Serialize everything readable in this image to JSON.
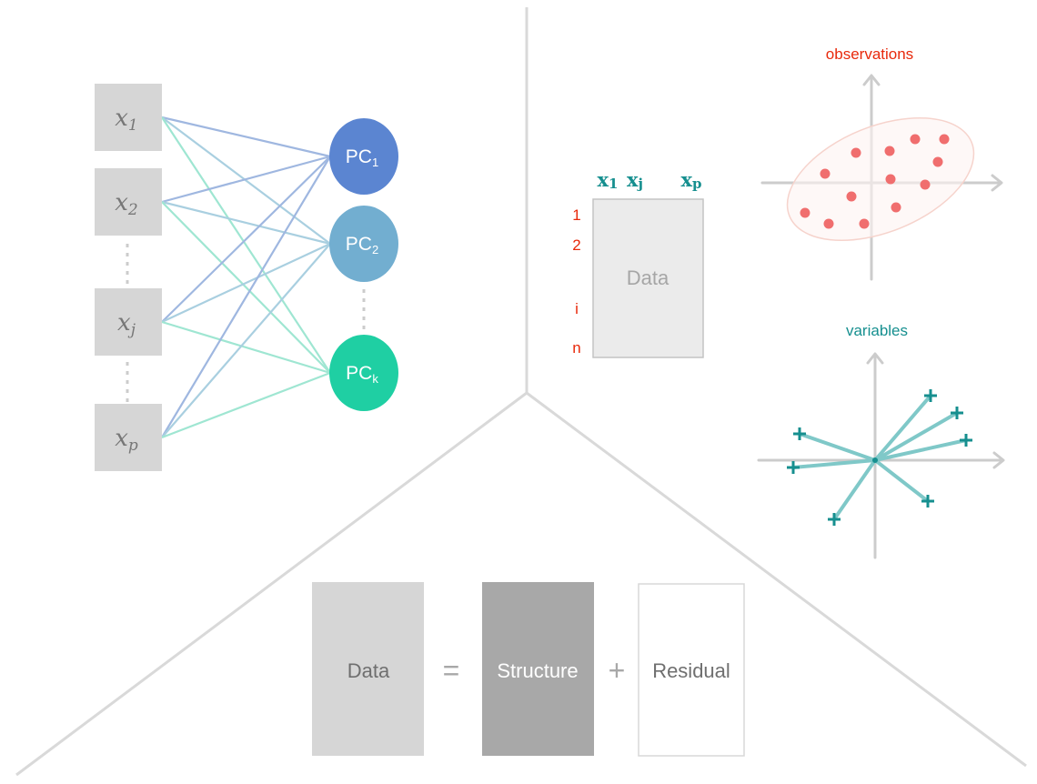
{
  "network": {
    "inputs": [
      {
        "base": "x",
        "sub": "1"
      },
      {
        "base": "x",
        "sub": "2"
      },
      {
        "base": "x",
        "sub": "j"
      },
      {
        "base": "x",
        "sub": "p"
      }
    ],
    "components": [
      {
        "base": "PC",
        "sub": "1",
        "color": "#5b85d1"
      },
      {
        "base": "PC",
        "sub": "2",
        "color": "#72aed0"
      },
      {
        "base": "PC",
        "sub": "k",
        "color": "#1fcfa3"
      }
    ],
    "edge_colors": [
      "#9fb7e0",
      "#a9cfe0",
      "#9fe6d2"
    ],
    "box_color": "#d6d6d6"
  },
  "matrix": {
    "columns": [
      {
        "base": "x",
        "sub": "1"
      },
      {
        "base": "x",
        "sub": "j"
      },
      {
        "base": "x",
        "sub": "p"
      }
    ],
    "rows": [
      "1",
      "2",
      "i",
      "n"
    ],
    "label": "Data",
    "row_color": "#e8290b",
    "col_color": "#168f8f"
  },
  "observations": {
    "title": "observations",
    "color": "#f06e6e"
  },
  "variables": {
    "title": "variables",
    "color": "#168f8f"
  },
  "equation": {
    "data_label": "Data",
    "equals": "=",
    "structure_label": "Structure",
    "plus": "+",
    "residual_label": "Residual"
  }
}
